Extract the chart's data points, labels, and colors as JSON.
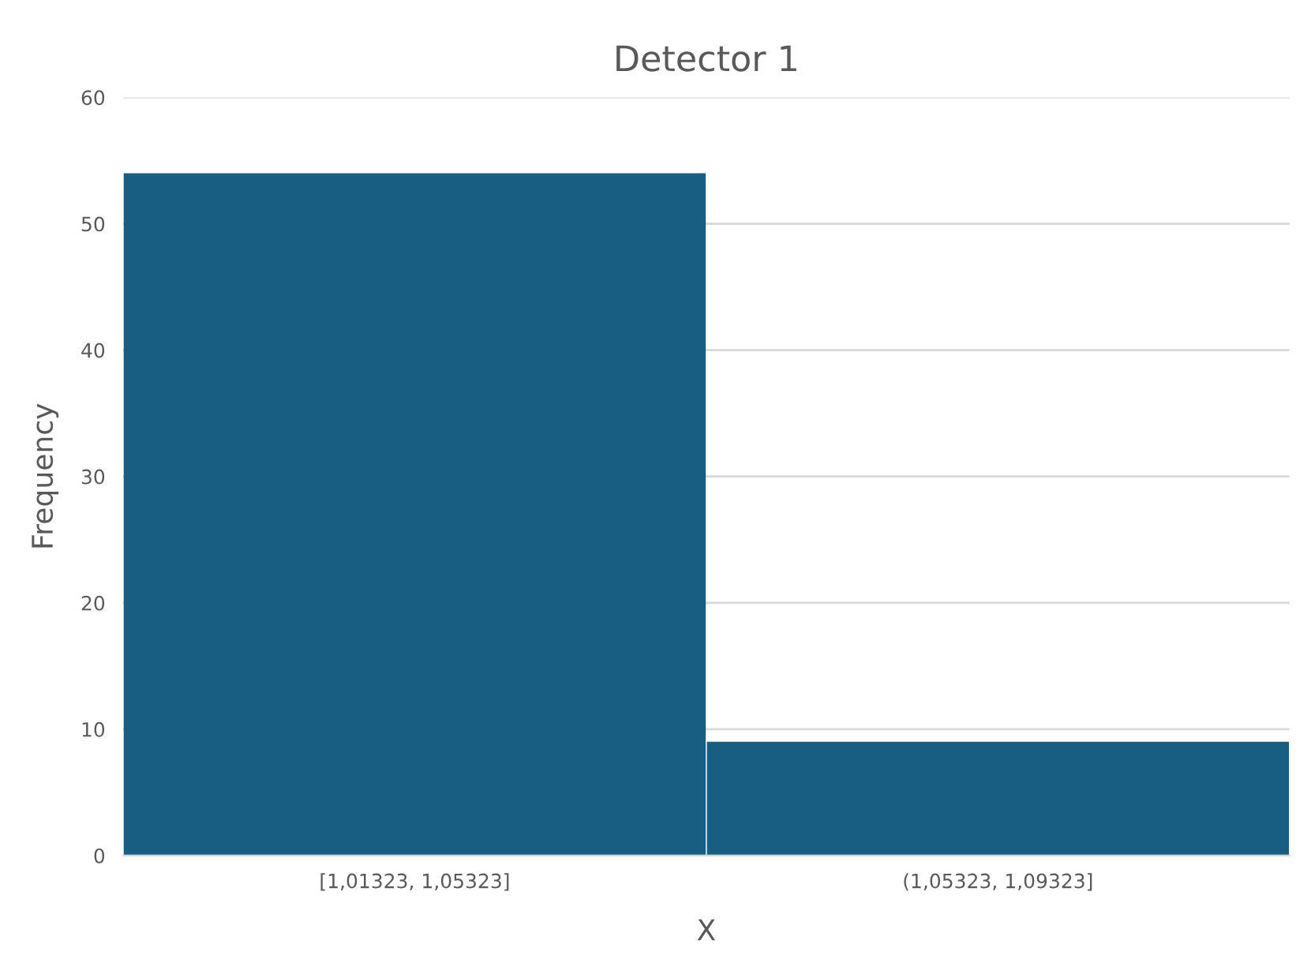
{
  "chart_data": {
    "type": "bar",
    "title": "Detector 1",
    "xlabel": "X",
    "ylabel": "Frequency",
    "categories": [
      "[1,01323, 1,05323]",
      "(1,05323, 1,09323]"
    ],
    "values": [
      54,
      9
    ],
    "color": "#175e82",
    "ylim": [
      0,
      60
    ],
    "yticks": [
      0,
      10,
      20,
      30,
      40,
      50,
      60
    ],
    "grid": "y"
  }
}
